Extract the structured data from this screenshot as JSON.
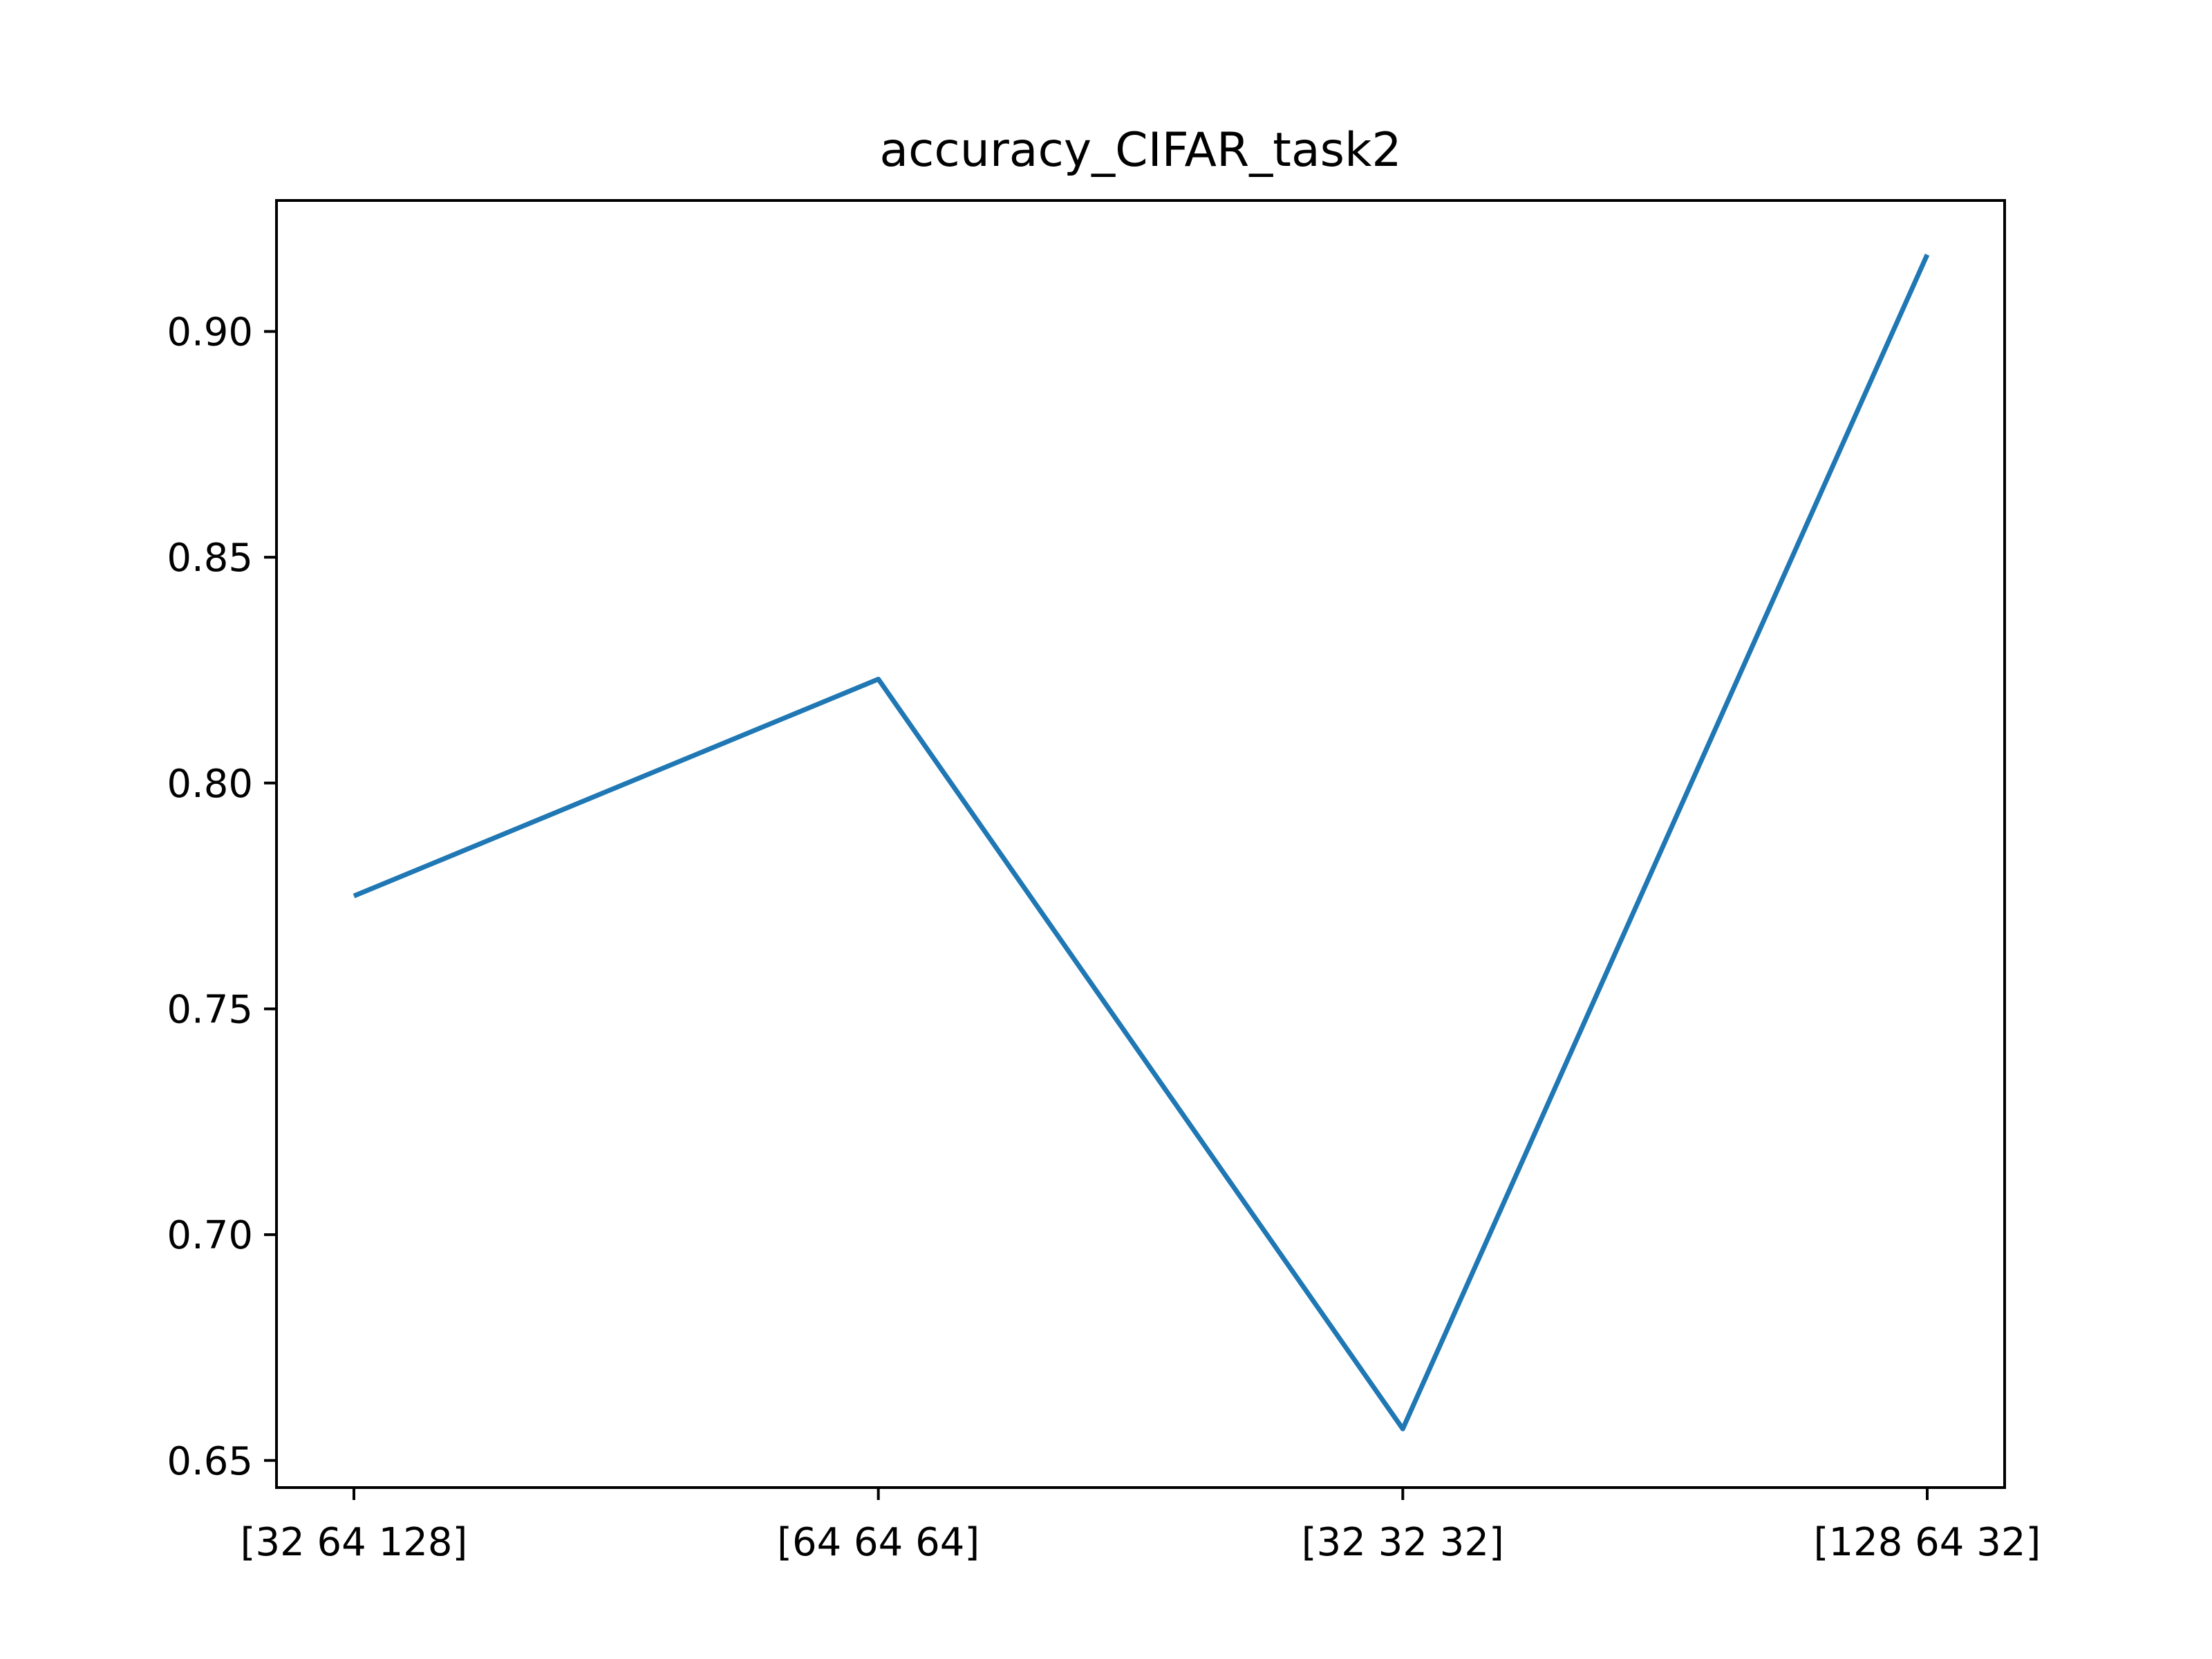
{
  "chart_data": {
    "type": "line",
    "title": "accuracy_CIFAR_task2",
    "xlabel": "",
    "ylabel": "",
    "categories": [
      "[32 64 128]",
      "[64 64 64]",
      "[32 32 32]",
      "[128 64 32]"
    ],
    "series": [
      {
        "values": [
          0.775,
          0.823,
          0.657,
          0.917
        ],
        "color": "#1f77b4"
      }
    ],
    "yticks": [
      0.65,
      0.7,
      0.75,
      0.8,
      0.85,
      0.9
    ],
    "ytick_labels": [
      "0.65",
      "0.70",
      "0.75",
      "0.80",
      "0.85",
      "0.90"
    ],
    "ylim": [
      0.644,
      0.929
    ],
    "grid": false,
    "legend": false
  }
}
